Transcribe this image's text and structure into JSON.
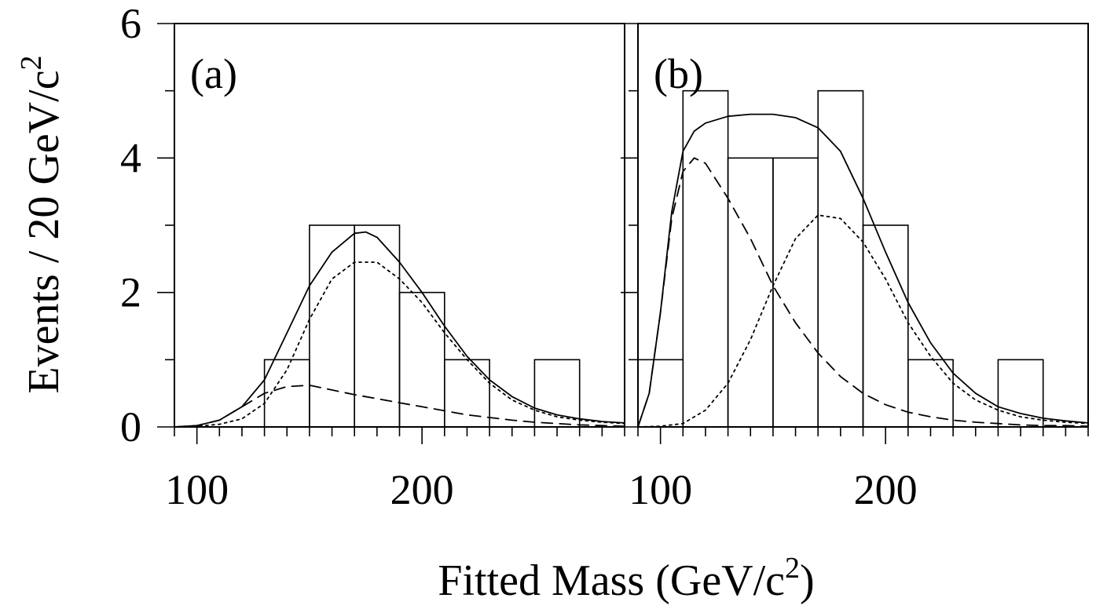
{
  "chart_data": [
    {
      "type": "line",
      "panel_label": "(a)",
      "xlim": [
        90,
        290
      ],
      "ylim": [
        0,
        6
      ],
      "x_tick_labels": [
        "100",
        "200"
      ],
      "x_ticks": [
        100,
        200
      ],
      "x_minor_step": 10,
      "y_tick_labels": [
        "0",
        "2",
        "4",
        "6"
      ],
      "y_ticks": [
        0,
        2,
        4,
        6
      ],
      "y_minor_step": 1,
      "histogram": {
        "bin_edges": [
          130,
          150,
          170,
          190,
          210,
          230,
          250,
          270
        ],
        "counts": [
          1,
          3,
          3,
          2,
          1,
          0,
          1
        ]
      },
      "series": [
        {
          "style": "solid",
          "x": [
            90,
            100,
            110,
            120,
            130,
            140,
            150,
            160,
            170,
            175,
            180,
            190,
            200,
            210,
            220,
            230,
            240,
            250,
            260,
            270,
            280,
            290
          ],
          "y": [
            0.0,
            0.02,
            0.1,
            0.3,
            0.7,
            1.4,
            2.1,
            2.6,
            2.88,
            2.9,
            2.82,
            2.45,
            2.0,
            1.5,
            1.05,
            0.7,
            0.45,
            0.28,
            0.18,
            0.12,
            0.08,
            0.06
          ]
        },
        {
          "style": "dotted",
          "x": [
            90,
            100,
            110,
            120,
            130,
            140,
            150,
            160,
            170,
            180,
            190,
            200,
            210,
            220,
            230,
            240,
            250,
            260,
            270,
            280,
            290
          ],
          "y": [
            0.0,
            0.01,
            0.04,
            0.12,
            0.35,
            0.85,
            1.6,
            2.2,
            2.45,
            2.45,
            2.2,
            1.85,
            1.4,
            1.0,
            0.65,
            0.4,
            0.25,
            0.15,
            0.1,
            0.07,
            0.05
          ]
        },
        {
          "style": "dashed",
          "x": [
            90,
            100,
            110,
            120,
            130,
            140,
            150,
            160,
            170,
            180,
            190,
            200,
            210,
            220,
            230,
            240,
            250,
            260,
            270,
            280,
            290
          ],
          "y": [
            0.0,
            0.02,
            0.1,
            0.3,
            0.5,
            0.6,
            0.62,
            0.55,
            0.48,
            0.42,
            0.36,
            0.3,
            0.24,
            0.18,
            0.14,
            0.1,
            0.07,
            0.05,
            0.03,
            0.02,
            0.01
          ]
        }
      ]
    },
    {
      "type": "line",
      "panel_label": "(b)",
      "xlim": [
        90,
        290
      ],
      "ylim": [
        0,
        6
      ],
      "x_tick_labels": [
        "100",
        "200"
      ],
      "x_ticks": [
        100,
        200
      ],
      "x_minor_step": 10,
      "y_tick_labels": [],
      "y_ticks": [
        0,
        2,
        4,
        6
      ],
      "y_minor_step": 1,
      "histogram": {
        "bin_edges": [
          90,
          110,
          130,
          150,
          170,
          190,
          210,
          230,
          250,
          270
        ],
        "counts": [
          1,
          5,
          4,
          4,
          5,
          3,
          1,
          0,
          1
        ]
      },
      "series": [
        {
          "style": "solid",
          "x": [
            90,
            95,
            100,
            105,
            110,
            115,
            120,
            130,
            140,
            150,
            160,
            170,
            180,
            190,
            200,
            210,
            220,
            230,
            240,
            250,
            260,
            270,
            280,
            290
          ],
          "y": [
            0.0,
            0.5,
            1.7,
            3.2,
            4.1,
            4.4,
            4.52,
            4.62,
            4.65,
            4.65,
            4.6,
            4.45,
            4.1,
            3.4,
            2.6,
            1.85,
            1.25,
            0.8,
            0.5,
            0.3,
            0.2,
            0.13,
            0.09,
            0.06
          ]
        },
        {
          "style": "dashed",
          "x": [
            90,
            95,
            100,
            105,
            110,
            115,
            120,
            130,
            140,
            150,
            160,
            170,
            180,
            190,
            200,
            210,
            220,
            230,
            240,
            250,
            260,
            270,
            280,
            290
          ],
          "y": [
            0.0,
            0.5,
            1.7,
            3.1,
            3.8,
            4.0,
            3.92,
            3.4,
            2.8,
            2.1,
            1.55,
            1.1,
            0.75,
            0.5,
            0.33,
            0.22,
            0.15,
            0.1,
            0.07,
            0.05,
            0.03,
            0.02,
            0.02,
            0.01
          ]
        },
        {
          "style": "dotted",
          "x": [
            90,
            100,
            110,
            120,
            130,
            140,
            150,
            160,
            170,
            180,
            190,
            200,
            210,
            220,
            230,
            240,
            250,
            260,
            270,
            280,
            290
          ],
          "y": [
            0.0,
            0.01,
            0.05,
            0.25,
            0.65,
            1.3,
            2.1,
            2.8,
            3.15,
            3.1,
            2.75,
            2.2,
            1.55,
            1.05,
            0.65,
            0.4,
            0.25,
            0.15,
            0.1,
            0.07,
            0.05
          ]
        }
      ]
    }
  ],
  "ylabel": {
    "main": "Events / 20 GeV/c",
    "superscript": "2"
  },
  "xlabel": {
    "main": "Fitted Mass (GeV/c",
    "superscript": "2",
    "close": ")"
  }
}
